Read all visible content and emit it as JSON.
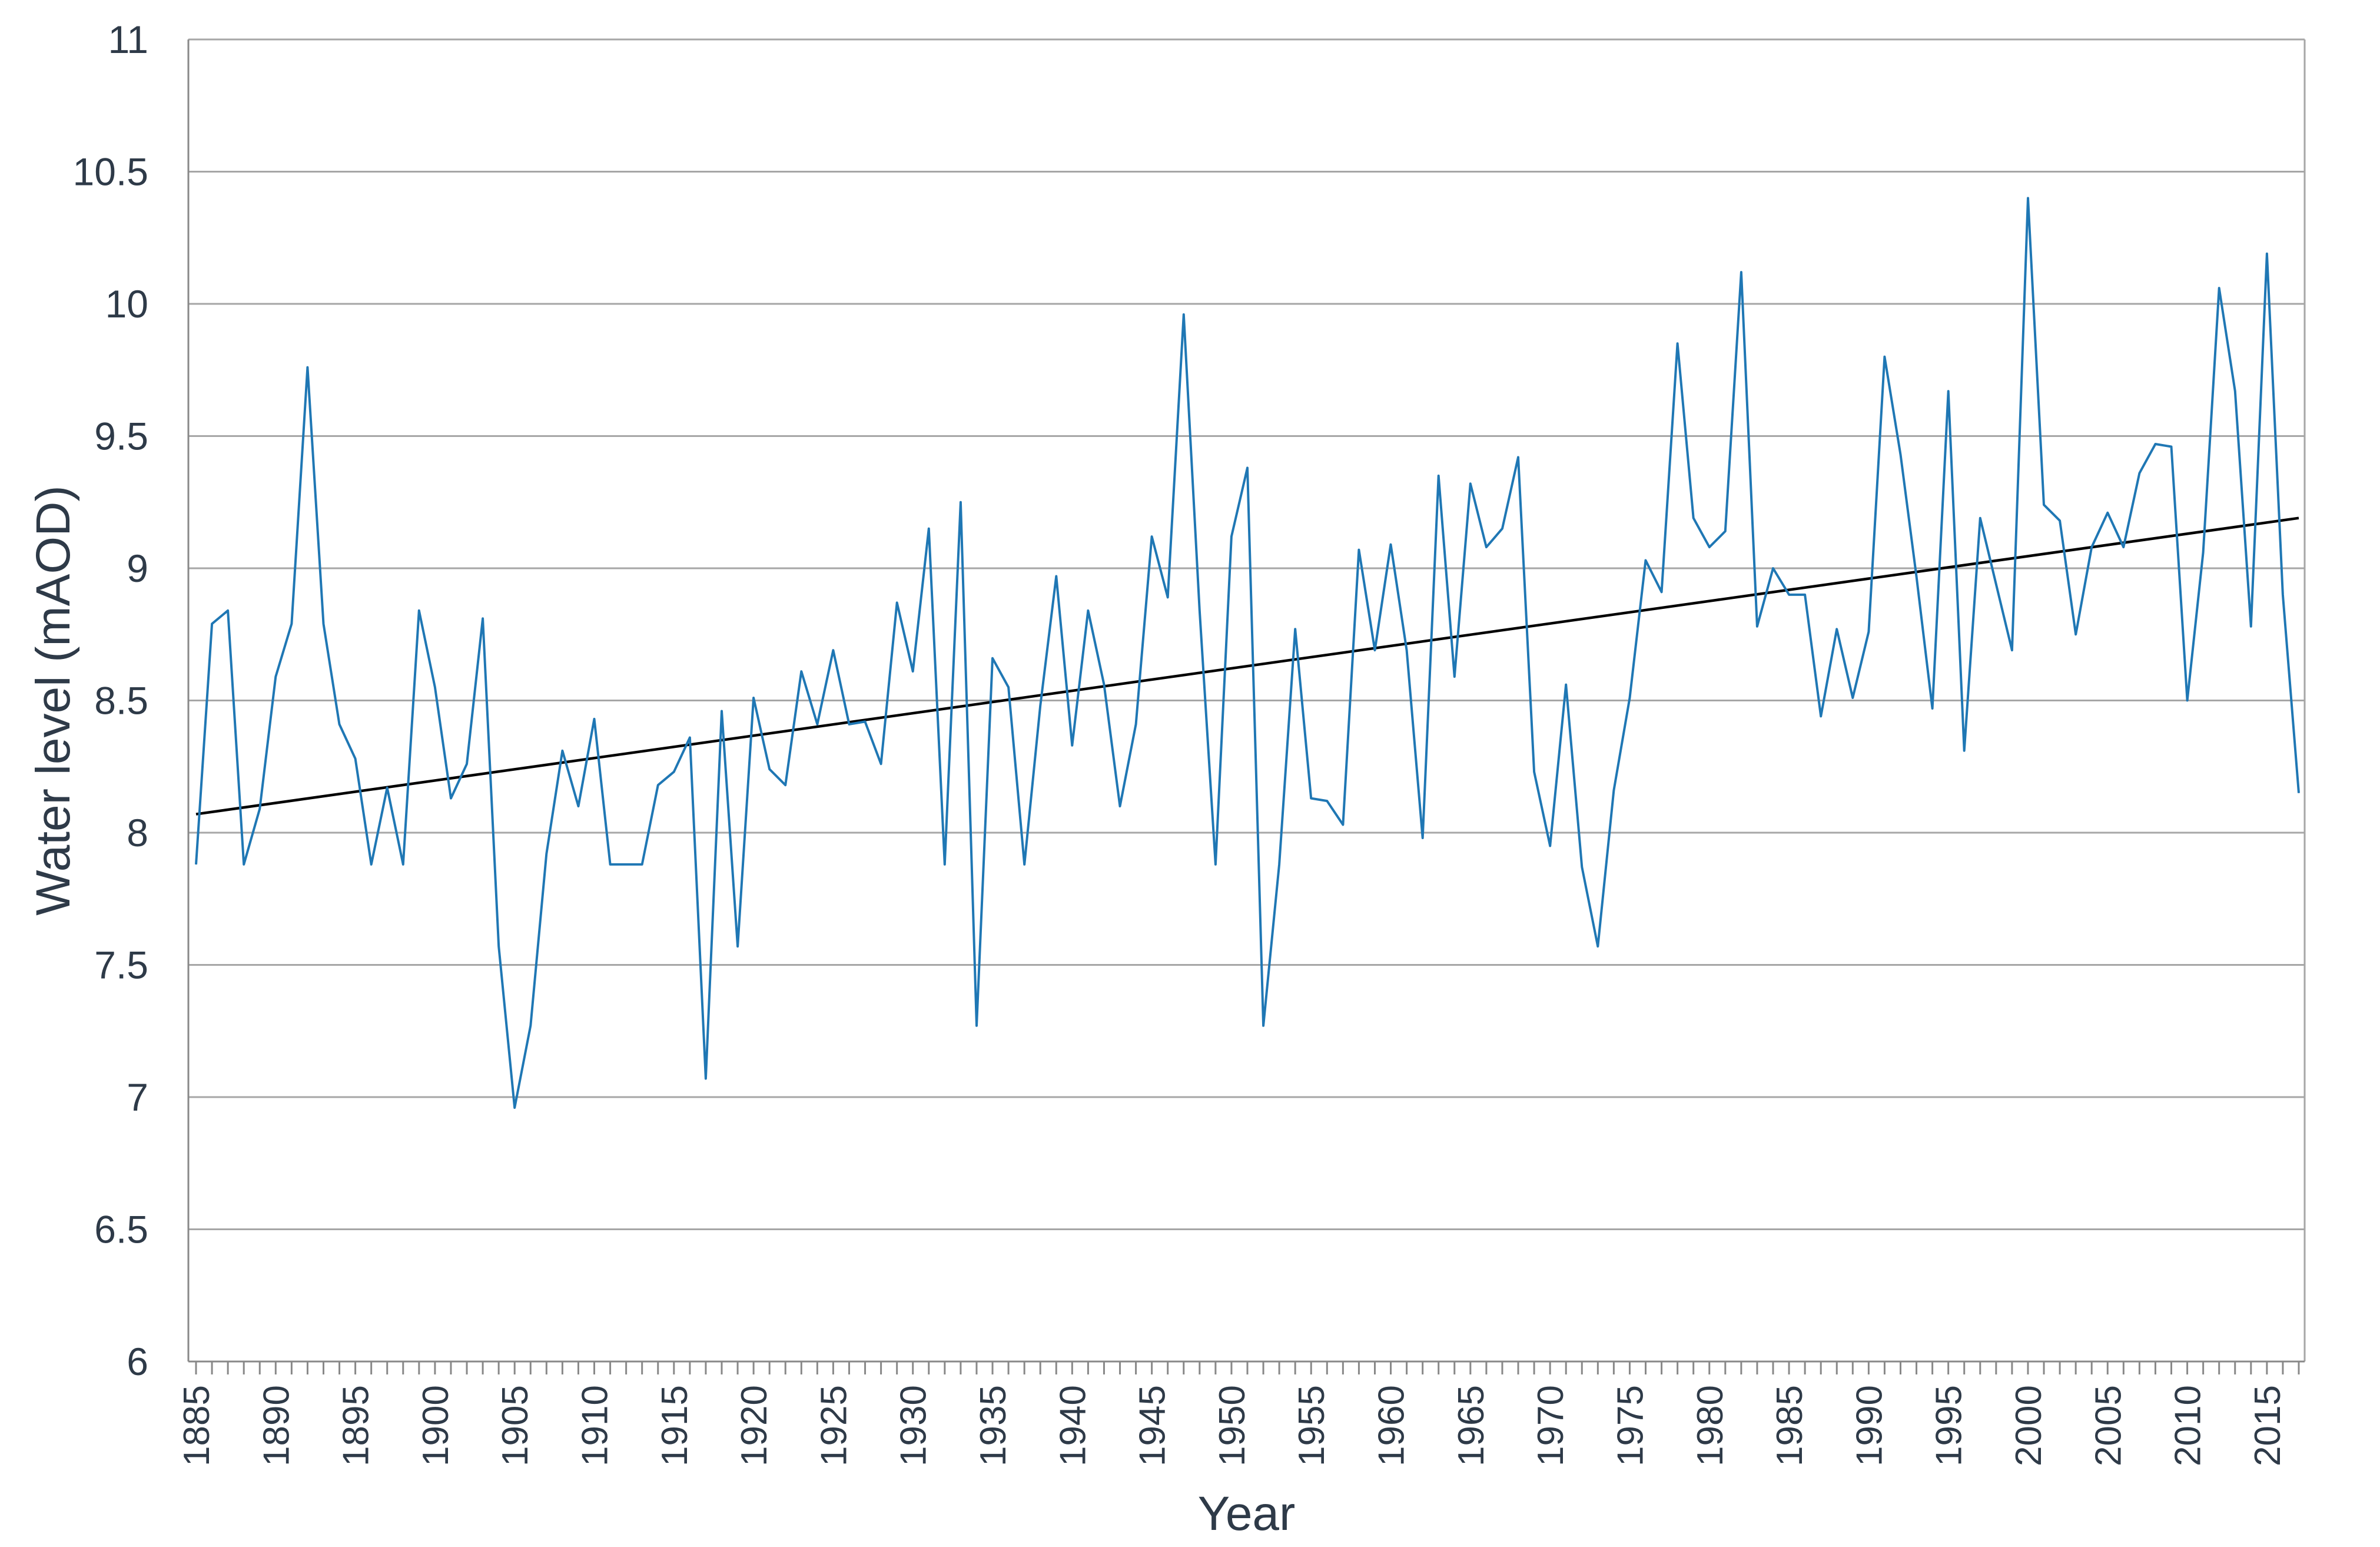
{
  "chart_data": {
    "type": "line",
    "xlabel": "Year",
    "ylabel": "Water level (mAOD)",
    "ylim": [
      6,
      11
    ],
    "yticks": [
      "6",
      "6.5",
      "7",
      "7.5",
      "8",
      "8.5",
      "9",
      "9.5",
      "10",
      "10.5",
      "11"
    ],
    "xlim": [
      1885,
      2017
    ],
    "xtick_labels": [
      "1885",
      "1890",
      "1895",
      "1900",
      "1905",
      "1910",
      "1915",
      "1920",
      "1925",
      "1930",
      "1935",
      "1940",
      "1945",
      "1950",
      "1955",
      "1960",
      "1965",
      "1970",
      "1975",
      "1980",
      "1985",
      "1990",
      "1995",
      "2000",
      "2005",
      "2010",
      "2015"
    ],
    "grid": true,
    "colors": {
      "series": "#1f77b4",
      "trend": "#000000",
      "grid": "#a6a6a6"
    },
    "series": [
      {
        "x": [
          1885,
          1886,
          1887,
          1888,
          1889,
          1890,
          1891,
          1892,
          1893,
          1894,
          1895,
          1896,
          1897,
          1898,
          1899,
          1900,
          1901,
          1902,
          1903,
          1904,
          1905,
          1906,
          1907,
          1908,
          1909,
          1910,
          1911,
          1912,
          1913,
          1914,
          1915,
          1916,
          1917,
          1918,
          1919,
          1920,
          1921,
          1922,
          1923,
          1924,
          1925,
          1926,
          1927,
          1928,
          1929,
          1930,
          1931,
          1932,
          1933,
          1934,
          1935,
          1936,
          1937,
          1938,
          1939,
          1940,
          1941,
          1942,
          1943,
          1944,
          1945,
          1946,
          1947,
          1948,
          1949,
          1950,
          1951,
          1952,
          1953,
          1954,
          1955,
          1956,
          1957,
          1958,
          1959,
          1960,
          1961,
          1962,
          1963,
          1964,
          1965,
          1966,
          1967,
          1968,
          1969,
          1970,
          1971,
          1972,
          1973,
          1974,
          1975,
          1976,
          1977,
          1978,
          1979,
          1980,
          1981,
          1982,
          1983,
          1984,
          1985,
          1986,
          1987,
          1988,
          1989,
          1990,
          1991,
          1992,
          1993,
          1994,
          1995,
          1996,
          1997,
          1998,
          1999,
          2000,
          2001,
          2002,
          2003,
          2004,
          2005,
          2006,
          2007,
          2008,
          2009,
          2010,
          2011,
          2012,
          2013,
          2014,
          2015,
          2016,
          2017
        ],
        "values": [
          7.88,
          8.79,
          8.84,
          7.88,
          8.09,
          8.59,
          8.79,
          9.76,
          8.79,
          8.41,
          8.28,
          7.88,
          8.17,
          7.88,
          8.84,
          8.55,
          8.13,
          8.26,
          8.81,
          7.57,
          6.96,
          7.27,
          7.92,
          8.31,
          8.1,
          8.43,
          7.88,
          7.88,
          7.88,
          8.18,
          8.23,
          8.36,
          7.07,
          8.46,
          7.57,
          8.51,
          8.24,
          8.18,
          8.61,
          8.41,
          8.69,
          8.41,
          8.42,
          8.26,
          8.87,
          8.61,
          9.15,
          7.88,
          9.25,
          7.27,
          8.66,
          8.55,
          7.88,
          8.48,
          8.97,
          8.33,
          8.84,
          8.56,
          8.1,
          8.41,
          9.12,
          8.89,
          9.96,
          8.84,
          7.88,
          9.12,
          9.38,
          7.27,
          7.88,
          8.77,
          8.13,
          8.12,
          8.03,
          9.07,
          8.69,
          9.09,
          8.69,
          7.98,
          9.35,
          8.59,
          9.32,
          9.08,
          9.15,
          9.42,
          8.23,
          7.95,
          8.56,
          7.87,
          7.57,
          8.16,
          8.51,
          9.03,
          8.91,
          9.85,
          9.19,
          9.08,
          9.14,
          10.12,
          8.78,
          9.0,
          8.9,
          8.9,
          8.44,
          8.77,
          8.51,
          8.76,
          9.8,
          9.43,
          8.97,
          8.47,
          9.67,
          8.31,
          9.19,
          8.94,
          8.69,
          10.4,
          9.24,
          9.18,
          8.75,
          9.08,
          9.21,
          9.08,
          9.36,
          9.47,
          9.46,
          8.5,
          9.06,
          10.06,
          9.67,
          8.78,
          10.19,
          8.9,
          8.15
        ]
      }
    ],
    "trendline": {
      "x": [
        1885,
        2017
      ],
      "y": [
        8.07,
        9.19
      ]
    }
  }
}
